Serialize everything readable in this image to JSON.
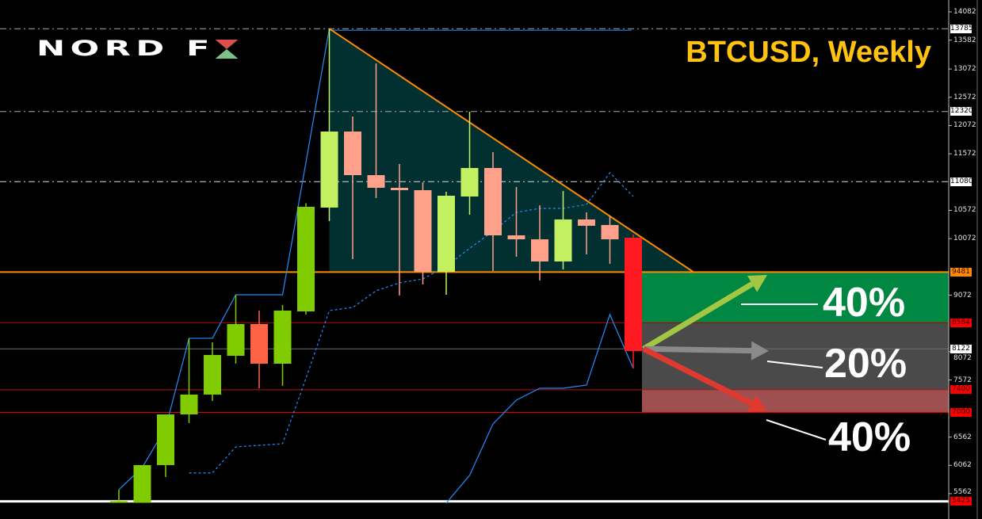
{
  "logo": {
    "text": "NORD FX",
    "x_colors": [
      "#d9504a",
      "#7cc08a"
    ]
  },
  "title": "BTCUSD, Weekly",
  "colors": {
    "bull": "#80cc00",
    "bull_in_pattern": "#c2f060",
    "bear": "#ff6347",
    "bear_in_pattern": "#ffa08a",
    "breakout_candle": "#ff1a22",
    "triangle_fill": "#022f30",
    "triangle_edge": "#ff8c00",
    "indicator": "#1e90ff",
    "zone_up": "#008741",
    "zone_flat": "#4a4a4a",
    "zone_down": "#9e4f4f",
    "arrow_up": "#a3c644",
    "arrow_flat": "#8a8a8a",
    "arrow_down": "#e0392f"
  },
  "scenarios": [
    {
      "label": "40%",
      "direction": "up"
    },
    {
      "label": "20%",
      "direction": "sideways"
    },
    {
      "label": "40%",
      "direction": "down"
    }
  ],
  "chart_data": {
    "type": "candlestick",
    "symbol": "BTCUSD",
    "timeframe": "Weekly",
    "ylim": [
      5300,
      14200
    ],
    "grid": false,
    "y_ticks": [
      14082,
      13582,
      13072,
      12572,
      12072,
      11572,
      10572,
      10072,
      9072,
      8072,
      7572,
      6562,
      6062,
      5562
    ],
    "candles": [
      {
        "o": 5400,
        "h": 5632,
        "l": 5400,
        "c": 5430
      },
      {
        "o": 5400,
        "h": 6067,
        "l": 5400,
        "c": 6067
      },
      {
        "o": 6067,
        "h": 6963,
        "l": 5856,
        "c": 6963
      },
      {
        "o": 6963,
        "h": 8309,
        "l": 6809,
        "c": 7314
      },
      {
        "o": 7314,
        "h": 8239,
        "l": 7202,
        "c": 8014
      },
      {
        "o": 8000,
        "h": 9079,
        "l": 7860,
        "c": 8561
      },
      {
        "o": 8561,
        "h": 8799,
        "l": 7426,
        "c": 7860
      },
      {
        "o": 7860,
        "h": 8897,
        "l": 7468,
        "c": 8799
      },
      {
        "o": 8785,
        "h": 10700,
        "l": 8729,
        "c": 10635
      },
      {
        "o": 10621,
        "h": 13785,
        "l": 10383,
        "c": 11966
      },
      {
        "o": 11966,
        "h": 12232,
        "l": 9710,
        "c": 11195
      },
      {
        "o": 11195,
        "h": 13171,
        "l": 10789,
        "c": 10971
      },
      {
        "o": 10971,
        "h": 11392,
        "l": 9065,
        "c": 10929
      },
      {
        "o": 10929,
        "h": 11069,
        "l": 9262,
        "c": 9486
      },
      {
        "o": 9486,
        "h": 10901,
        "l": 9079,
        "c": 10831
      },
      {
        "o": 10817,
        "h": 12316,
        "l": 10495,
        "c": 11321
      },
      {
        "o": 11321,
        "h": 11602,
        "l": 9500,
        "c": 10130
      },
      {
        "o": 10130,
        "h": 10985,
        "l": 9752,
        "c": 10060
      },
      {
        "o": 10060,
        "h": 10663,
        "l": 9332,
        "c": 9668
      },
      {
        "o": 9668,
        "h": 10915,
        "l": 9528,
        "c": 10411
      },
      {
        "o": 10411,
        "h": 10537,
        "l": 9794,
        "c": 10299
      },
      {
        "o": 10313,
        "h": 10481,
        "l": 9626,
        "c": 10060
      },
      {
        "o": 10088,
        "h": 10144,
        "l": 7776,
        "c": 8084
      }
    ],
    "indicator_solid": [
      5632,
      6025,
      6725,
      8309,
      8309,
      9079,
      9079,
      9079,
      11420,
      13785,
      null,
      null,
      null,
      null,
      null,
      null,
      null,
      null,
      null,
      null,
      null,
      null,
      null
    ],
    "indicator_lagging": [
      null,
      null,
      null,
      null,
      null,
      null,
      null,
      null,
      null,
      null,
      null,
      null,
      null,
      null,
      5394,
      5885,
      6795,
      7216,
      7426,
      7426,
      7482,
      8729,
      7776
    ],
    "indicator_dotted": [
      null,
      null,
      null,
      5928,
      5928,
      6389,
      6417,
      6445,
      7600,
      8799,
      8855,
      9150,
      9290,
      9360,
      9580,
      9900,
      10200,
      10537,
      10607,
      10607,
      10677,
      11237,
      10817
    ],
    "levels": [
      {
        "price": 13785,
        "label": "13785",
        "style": "dashdot",
        "color": "#aaaaaa",
        "badge": "#ffffff"
      },
      {
        "price": 12320,
        "label": "12320",
        "style": "dashdot",
        "color": "#aaaaaa",
        "badge": "#ffffff"
      },
      {
        "price": 11080,
        "label": "11080",
        "style": "dashdot",
        "color": "#dddddd",
        "badge": "#ffffff"
      },
      {
        "price": 9481,
        "label": "9481",
        "style": "solid",
        "color": "#ff8c00",
        "badge": "#ff8c00"
      },
      {
        "price": 8584,
        "label": "8584",
        "style": "solid",
        "color": "#b00000",
        "badge": "#ff0000"
      },
      {
        "price": 8122,
        "label": "8122",
        "style": "solid",
        "color": "#607080",
        "badge": "#ffffff"
      },
      {
        "price": 7400,
        "label": "7400",
        "style": "solid",
        "color": "#c01010",
        "badge": "#ff0000"
      },
      {
        "price": 7000,
        "label": "7000",
        "style": "solid",
        "color": "#ff0000",
        "badge": "#ff0000"
      },
      {
        "price": 5425,
        "label": "5425",
        "style": "solid",
        "color": "#ffffff",
        "badge": "#ff0000"
      }
    ],
    "triangle": {
      "apex_price": 13785,
      "base_price": 9481
    }
  }
}
